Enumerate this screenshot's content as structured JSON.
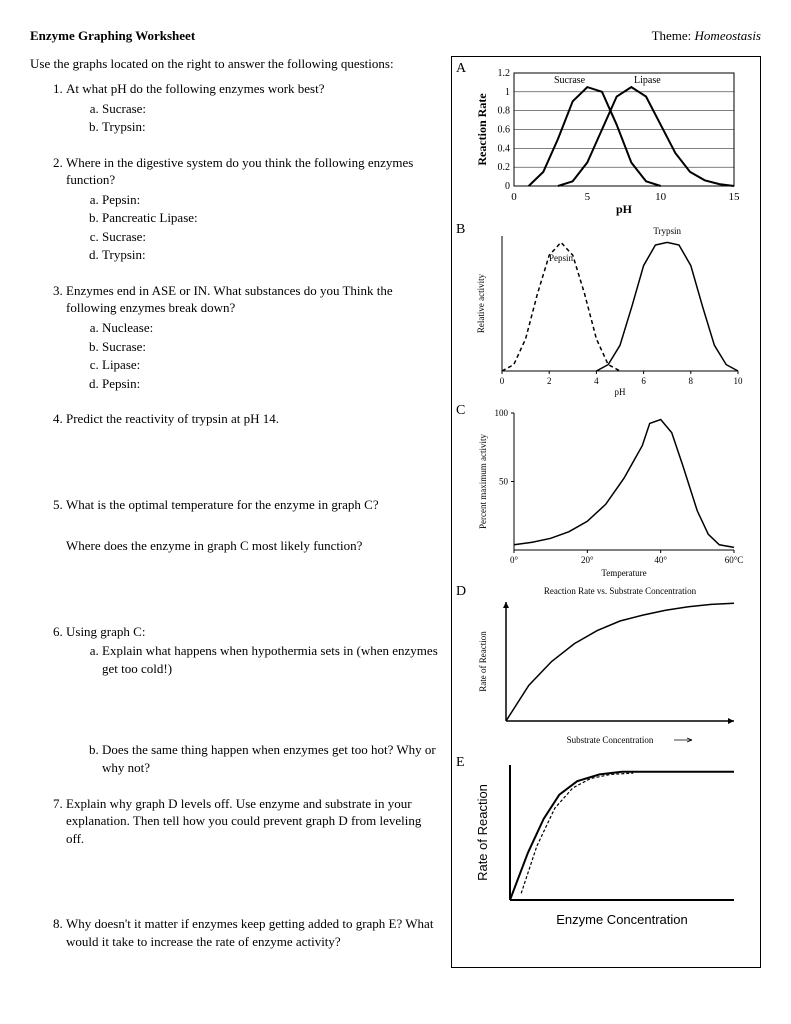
{
  "header": {
    "title": "Enzyme Graphing Worksheet",
    "theme_label": "Theme:",
    "theme_value": "Homeostasis"
  },
  "intro": "Use the graphs located on the right to answer the following questions:",
  "questions": [
    {
      "text": "At what pH do the following enzymes work best?",
      "sub": [
        "Sucrase:",
        "Trypsin:"
      ]
    },
    {
      "text": "Where in the digestive system do you think the following enzymes function?",
      "sub": [
        "Pepsin:",
        "Pancreatic Lipase:",
        "Sucrase:",
        "Trypsin:"
      ]
    },
    {
      "text": "Enzymes end in ASE or IN.  What substances do you Think the following enzymes break down?",
      "sub": [
        "Nuclease:",
        "Sucrase:",
        "Lipase:",
        "Pepsin:"
      ]
    },
    {
      "text": "Predict the reactivity of trypsin at pH 14."
    },
    {
      "text": "What is the optimal temperature for the enzyme in graph C?",
      "follow": "Where does the enzyme in graph C most likely function?"
    },
    {
      "text": "Using graph C:",
      "sub_a": "Explain what happens when hypothermia sets in (when enzymes get too cold!)",
      "sub_b": "Does the same thing happen when enzymes get too hot?  Why or why not?"
    },
    {
      "text": "Explain why graph D levels off.  Use enzyme and substrate in your explanation.  Then tell how you could prevent graph D from leveling off."
    },
    {
      "text": "Why doesn't it matter if enzymes keep getting added to graph E?  What would it take to increase the rate of enzyme activity?"
    }
  ],
  "graphs": {
    "A": {
      "letter": "A",
      "type": "line",
      "title": "",
      "ylabel": "Reaction Rate",
      "xlabel": "pH",
      "xlim": [
        0,
        15
      ],
      "xticks": [
        0,
        5,
        10,
        15
      ],
      "ylim": [
        0,
        1.2
      ],
      "yticks": [
        0,
        0.2,
        0.4,
        0.6,
        0.8,
        1,
        1.2
      ],
      "legend": [
        "Sucrase",
        "Lipase"
      ],
      "series": [
        {
          "name": "Sucrase",
          "color": "#000000",
          "width": 2,
          "points": [
            [
              1,
              0
            ],
            [
              2,
              0.15
            ],
            [
              3,
              0.5
            ],
            [
              4,
              0.9
            ],
            [
              5,
              1.05
            ],
            [
              6,
              1.0
            ],
            [
              7,
              0.65
            ],
            [
              8,
              0.25
            ],
            [
              9,
              0.05
            ],
            [
              10,
              0
            ]
          ]
        },
        {
          "name": "Lipase",
          "color": "#000000",
          "width": 2,
          "points": [
            [
              3,
              0
            ],
            [
              4,
              0.05
            ],
            [
              5,
              0.25
            ],
            [
              6,
              0.6
            ],
            [
              7,
              0.95
            ],
            [
              8,
              1.05
            ],
            [
              9,
              0.95
            ],
            [
              10,
              0.65
            ],
            [
              11,
              0.35
            ],
            [
              12,
              0.15
            ],
            [
              13,
              0.06
            ],
            [
              14,
              0.02
            ],
            [
              15,
              0
            ]
          ]
        }
      ],
      "grid_color": "#000000",
      "background": "#ffffff",
      "label_fontsize": 12
    },
    "B": {
      "letter": "B",
      "type": "line",
      "ylabel": "Relative activity",
      "xlabel": "pH",
      "xlim": [
        0,
        10
      ],
      "xticks": [
        0,
        2,
        4,
        6,
        8,
        10
      ],
      "series_labels": [
        "Pepsin",
        "Trypsin"
      ],
      "series": [
        {
          "name": "Pepsin",
          "dash": "4,3",
          "color": "#000000",
          "width": 1.5,
          "points": [
            [
              0,
              0
            ],
            [
              0.5,
              0.05
            ],
            [
              1,
              0.25
            ],
            [
              1.5,
              0.6
            ],
            [
              2,
              0.9
            ],
            [
              2.5,
              1.0
            ],
            [
              3,
              0.9
            ],
            [
              3.5,
              0.6
            ],
            [
              4,
              0.25
            ],
            [
              4.5,
              0.05
            ],
            [
              5,
              0
            ]
          ]
        },
        {
          "name": "Trypsin",
          "dash": "",
          "color": "#000000",
          "width": 1.5,
          "points": [
            [
              4,
              0
            ],
            [
              4.5,
              0.05
            ],
            [
              5,
              0.2
            ],
            [
              5.5,
              0.5
            ],
            [
              6,
              0.82
            ],
            [
              6.5,
              0.98
            ],
            [
              7,
              1.0
            ],
            [
              7.5,
              0.98
            ],
            [
              8,
              0.82
            ],
            [
              8.5,
              0.5
            ],
            [
              9,
              0.2
            ],
            [
              9.5,
              0.05
            ],
            [
              10,
              0
            ]
          ]
        }
      ]
    },
    "C": {
      "letter": "C",
      "type": "line",
      "ylabel": "Percent maximum activity",
      "xlabel": "Temperature",
      "xlim": [
        0,
        60
      ],
      "xticks": [
        0,
        20,
        40,
        60
      ],
      "xtick_labels": [
        "0°",
        "20°",
        "40°",
        "60°C"
      ],
      "ylim": [
        0,
        100
      ],
      "yticks": [
        50,
        100
      ],
      "series": [
        {
          "color": "#000000",
          "width": 1.5,
          "points": [
            [
              0,
              4
            ],
            [
              5,
              6
            ],
            [
              10,
              9
            ],
            [
              15,
              14
            ],
            [
              20,
              22
            ],
            [
              25,
              35
            ],
            [
              30,
              55
            ],
            [
              35,
              80
            ],
            [
              37,
              97
            ],
            [
              40,
              100
            ],
            [
              43,
              90
            ],
            [
              46,
              65
            ],
            [
              50,
              30
            ],
            [
              53,
              12
            ],
            [
              56,
              4
            ],
            [
              60,
              2
            ]
          ]
        }
      ]
    },
    "D": {
      "letter": "D",
      "type": "line",
      "title": "Reaction Rate vs. Substrate Concentration",
      "ylabel": "Rate of Reaction",
      "xlabel": "Substrate Concentration",
      "series": [
        {
          "color": "#000000",
          "width": 1.5,
          "points": [
            [
              0,
              0
            ],
            [
              0.1,
              0.3
            ],
            [
              0.2,
              0.5
            ],
            [
              0.3,
              0.65
            ],
            [
              0.4,
              0.76
            ],
            [
              0.5,
              0.84
            ],
            [
              0.6,
              0.89
            ],
            [
              0.7,
              0.93
            ],
            [
              0.8,
              0.96
            ],
            [
              0.9,
              0.98
            ],
            [
              1,
              0.99
            ]
          ]
        }
      ]
    },
    "E": {
      "letter": "E",
      "type": "line",
      "ylabel": "Rate of Reaction",
      "xlabel": "Enzyme Concentration",
      "series": [
        {
          "color": "#000000",
          "width": 2,
          "dash": "",
          "points": [
            [
              0,
              0
            ],
            [
              0.08,
              0.35
            ],
            [
              0.15,
              0.6
            ],
            [
              0.22,
              0.78
            ],
            [
              0.3,
              0.88
            ],
            [
              0.4,
              0.93
            ],
            [
              0.5,
              0.95
            ],
            [
              1,
              0.95
            ]
          ]
        },
        {
          "color": "#000000",
          "width": 1.2,
          "dash": "3,2",
          "points": [
            [
              0.05,
              0.05
            ],
            [
              0.12,
              0.4
            ],
            [
              0.2,
              0.68
            ],
            [
              0.28,
              0.83
            ],
            [
              0.36,
              0.9
            ],
            [
              0.45,
              0.93
            ],
            [
              0.55,
              0.94
            ]
          ]
        }
      ]
    }
  }
}
